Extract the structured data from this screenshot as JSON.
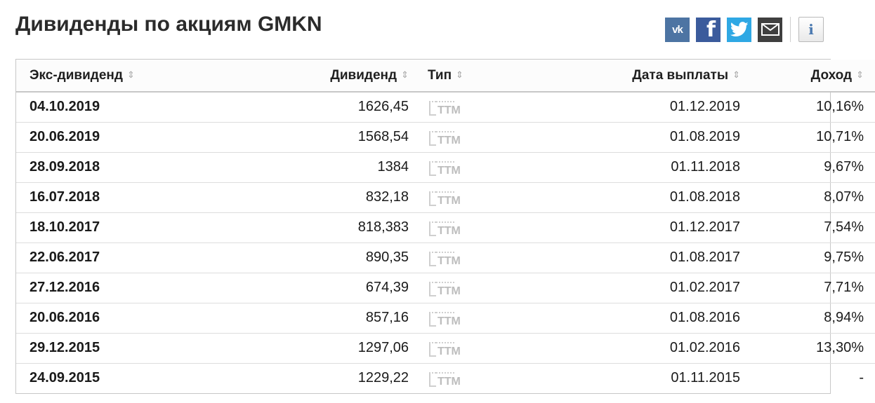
{
  "page": {
    "title": "Дивиденды по акциям GMKN"
  },
  "share": {
    "vk_label": "vk",
    "fb_label": "f",
    "info_label": "i",
    "icons": [
      "vk-icon",
      "facebook-icon",
      "twitter-icon",
      "mail-icon",
      "info-icon"
    ],
    "colors": {
      "vk": "#4d74a3",
      "facebook": "#3b5b9c",
      "twitter": "#2fa8e4",
      "mail": "#3f3f3f"
    }
  },
  "table": {
    "headers": {
      "ex_dividend": "Экс-дивиденд",
      "dividend": "Дивиденд",
      "type": "Тип",
      "pay_date": "Дата выплаты",
      "yield": "Доход"
    },
    "sort_glyph": "⇕",
    "rows": [
      {
        "ex": "04.10.2019",
        "div": "1626,45",
        "type": "TTM",
        "pay": "01.12.2019",
        "yld": "10,16%"
      },
      {
        "ex": "20.06.2019",
        "div": "1568,54",
        "type": "TTM",
        "pay": "01.08.2019",
        "yld": "10,71%"
      },
      {
        "ex": "28.09.2018",
        "div": "1384",
        "type": "TTM",
        "pay": "01.11.2018",
        "yld": "9,67%"
      },
      {
        "ex": "16.07.2018",
        "div": "832,18",
        "type": "TTM",
        "pay": "01.08.2018",
        "yld": "8,07%"
      },
      {
        "ex": "18.10.2017",
        "div": "818,383",
        "type": "TTM",
        "pay": "01.12.2017",
        "yld": "7,54%"
      },
      {
        "ex": "22.06.2017",
        "div": "890,35",
        "type": "TTM",
        "pay": "01.08.2017",
        "yld": "9,75%"
      },
      {
        "ex": "27.12.2016",
        "div": "674,39",
        "type": "TTM",
        "pay": "01.02.2017",
        "yld": "7,71%"
      },
      {
        "ex": "20.06.2016",
        "div": "857,16",
        "type": "TTM",
        "pay": "01.08.2016",
        "yld": "8,94%"
      },
      {
        "ex": "29.12.2015",
        "div": "1297,06",
        "type": "TTM",
        "pay": "01.02.2016",
        "yld": "13,30%"
      },
      {
        "ex": "24.09.2015",
        "div": "1229,22",
        "type": "TTM",
        "pay": "01.11.2015",
        "yld": "-"
      }
    ]
  }
}
